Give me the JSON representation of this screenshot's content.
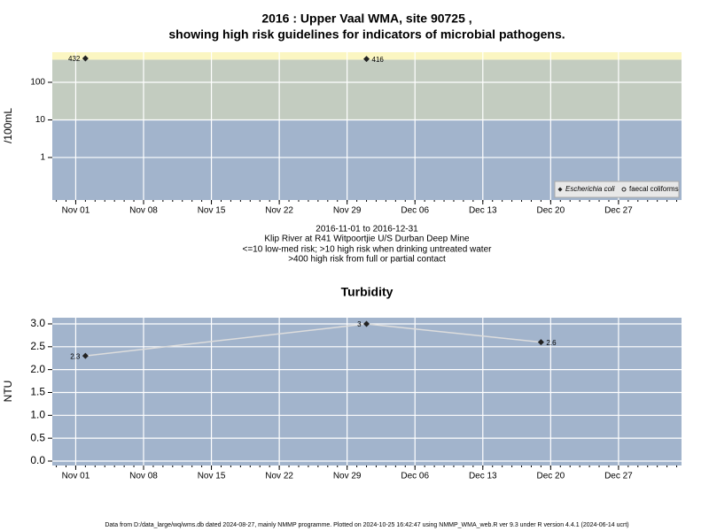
{
  "footer": "Data from D:/data_large/wq/wms.db dated 2024-08-27, mainly NMMP programme. Plotted on 2024-10-25 16:42:47 using NMMP_WMA_web.R ver 9.3 under R version 4.4.1 (2024-06-14 ucrt)",
  "chart_data": [
    {
      "type": "scatter",
      "title": [
        "2016 : Upper Vaal WMA, site 90725 ,",
        "showing high risk guidelines for indicators of microbial pathogens."
      ],
      "notes": [
        "2016-11-01 to 2016-12-31",
        "Klip River at R41 Witpoortjie U/S Durban Deep Mine",
        "<=10 low-med risk; >10 high risk when drinking untreated water",
        ">400 high risk from full or partial contact"
      ],
      "y_label": "/100mL",
      "log_y": true,
      "ylim": [
        0.074,
        631
      ],
      "yticks": [
        1,
        10,
        100
      ],
      "xlim": [
        "2016-10-29T14:00",
        "2017-01-02T12:00"
      ],
      "xticks": [
        {
          "value": "2016-11-01",
          "label": "Nov 01"
        },
        {
          "value": "2016-11-08",
          "label": "Nov 08"
        },
        {
          "value": "2016-11-15",
          "label": "Nov 15"
        },
        {
          "value": "2016-11-22",
          "label": "Nov 22"
        },
        {
          "value": "2016-11-29",
          "label": "Nov 29"
        },
        {
          "value": "2016-12-06",
          "label": "Dec 06"
        },
        {
          "value": "2016-12-13",
          "label": "Dec 13"
        },
        {
          "value": "2016-12-20",
          "label": "Dec 20"
        },
        {
          "value": "2016-12-27",
          "label": "Dec 27"
        }
      ],
      "thresholds": [
        10,
        400
      ],
      "band_colors": [
        "#a2b4cc",
        "#c3ccc0",
        "#fbf6c2"
      ],
      "grid": true,
      "legend": "bottom-right",
      "series": [
        {
          "name": "Escherichia coli",
          "color": "#222222",
          "marker": "diamond",
          "x": [
            "2016-11-02",
            "2016-12-01"
          ],
          "values": [
            432,
            416
          ]
        },
        {
          "name": "faecal coliforms",
          "color": "#222222",
          "marker": "circle",
          "x": [],
          "values": []
        }
      ]
    },
    {
      "type": "line",
      "title": "Turbidity",
      "y_label": "NTU",
      "log_y": false,
      "ylim": [
        -0.097,
        3.135
      ],
      "yticks": [
        {
          "value": 0,
          "label": "0.0"
        },
        0.5,
        {
          "value": 1,
          "label": "1.0"
        },
        1.5,
        {
          "value": 2,
          "label": "2.0"
        },
        2.5,
        {
          "value": 3,
          "label": "3.0"
        }
      ],
      "xlim": [
        "2016-10-29T14:00",
        "2017-01-02T12:00"
      ],
      "xticks": [
        {
          "value": "2016-11-01",
          "label": "Nov 01"
        },
        {
          "value": "2016-11-08",
          "label": "Nov 08"
        },
        {
          "value": "2016-11-15",
          "label": "Nov 15"
        },
        {
          "value": "2016-11-22",
          "label": "Nov 22"
        },
        {
          "value": "2016-11-29",
          "label": "Nov 29"
        },
        {
          "value": "2016-12-06",
          "label": "Dec 06"
        },
        {
          "value": "2016-12-13",
          "label": "Dec 13"
        },
        {
          "value": "2016-12-20",
          "label": "Dec 20"
        },
        {
          "value": "2016-12-27",
          "label": "Dec 27"
        }
      ],
      "background": "#a2b4cc",
      "grid": true,
      "series": [
        {
          "name": "Turbidity",
          "color": "#dddddd",
          "marker_color": "#222222",
          "x": [
            "2016-11-02",
            "2016-12-01",
            "2016-12-19"
          ],
          "values": [
            2.3,
            3,
            2.6
          ]
        }
      ]
    }
  ]
}
